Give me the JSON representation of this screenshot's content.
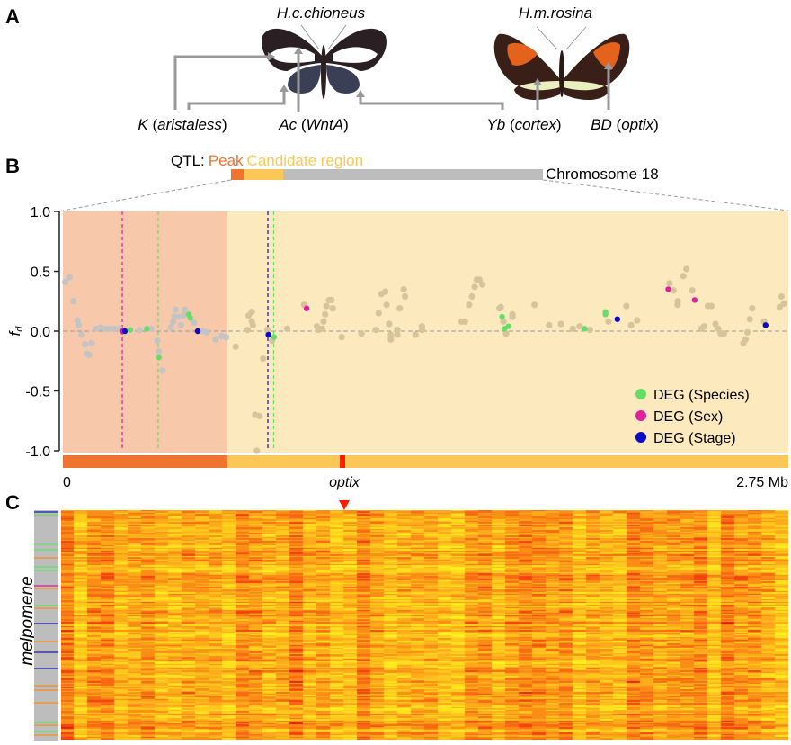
{
  "panel_labels": {
    "a": "A",
    "b": "B",
    "c": "C"
  },
  "panel_a": {
    "species_left": "H.c.chioneus",
    "species_right": "H.m.rosina",
    "loci": [
      {
        "locus": "K",
        "gene": "aristaless"
      },
      {
        "locus": "Ac",
        "gene": "WntA"
      },
      {
        "locus": "Yb",
        "gene": "cortex"
      },
      {
        "locus": "BD",
        "gene": "optix"
      }
    ]
  },
  "panel_b": {
    "qtl_prefix": "QTL:",
    "qtl_peak": "Peak",
    "qtl_candidate": "Candidate region",
    "chromosome": "Chromosome 18",
    "gene_marker": "optix",
    "x_start_label": "0",
    "x_end_label": "2.75 Mb"
  },
  "panel_c": {
    "ylabel": "melpomene"
  },
  "colors": {
    "peak": "#ee7430",
    "candidate": "#fbc756",
    "peak_bg": "#f8c8aa",
    "candidate_bg": "#fde9be",
    "chromosome": "#bdbdbd",
    "optix": "#ff1a00",
    "point_peak": "#c4c4c4",
    "point_candidate": "#d8c49a",
    "Species": "#66dd66",
    "Sex": "#e020a0",
    "Stage": "#0a0ac8"
  },
  "chart_data": {
    "type": "scatter",
    "ylabel": "fd",
    "xlim": [
      0,
      2.75
    ],
    "ylim": [
      -1.0,
      1.0
    ],
    "yticks": [
      "1.0",
      "0.5",
      "0.0",
      "-0.5",
      "-1.0"
    ],
    "peak_region": [
      0,
      0.624
    ],
    "candidate_region": [
      0.624,
      2.75
    ],
    "optix_position": [
      1.05,
      1.07
    ],
    "reference_lines": [
      {
        "x": 0.225,
        "category": "Sex"
      },
      {
        "x": 0.361,
        "category": "Species"
      },
      {
        "x": 0.777,
        "category": "Stage"
      },
      {
        "x": 0.799,
        "category": "Species"
      }
    ],
    "legend": [
      {
        "label": "DEG (Species)",
        "category": "Species"
      },
      {
        "label": "DEG (Sex)",
        "category": "Sex"
      },
      {
        "label": "DEG (Stage)",
        "category": "Stage"
      }
    ],
    "legend_position": "bottom-right",
    "points": [
      [
        0.009,
        0.41,
        ""
      ],
      [
        0.025,
        0.45,
        ""
      ],
      [
        0.04,
        0.25,
        ""
      ],
      [
        0.055,
        0.09,
        ""
      ],
      [
        0.06,
        0.05,
        ""
      ],
      [
        0.071,
        -0.03,
        ""
      ],
      [
        0.084,
        -0.11,
        ""
      ],
      [
        0.109,
        -0.1,
        ""
      ],
      [
        0.091,
        -0.19,
        ""
      ],
      [
        0.1,
        -0.2,
        ""
      ],
      [
        0.126,
        0.02,
        ""
      ],
      [
        0.143,
        0.03,
        ""
      ],
      [
        0.16,
        0.02,
        ""
      ],
      [
        0.177,
        0.02,
        ""
      ],
      [
        0.194,
        0.02,
        ""
      ],
      [
        0.215,
        0.02,
        ""
      ],
      [
        0.29,
        0.01,
        ""
      ],
      [
        0.334,
        0.02,
        ""
      ],
      [
        0.358,
        -0.08,
        ""
      ],
      [
        0.364,
        -0.17,
        ""
      ],
      [
        0.378,
        -0.33,
        ""
      ],
      [
        0.427,
        0.18,
        ""
      ],
      [
        0.462,
        0.18,
        ""
      ],
      [
        0.418,
        0.08,
        ""
      ],
      [
        0.423,
        0.12,
        ""
      ],
      [
        0.436,
        0.12,
        ""
      ],
      [
        0.457,
        0.13,
        ""
      ],
      [
        0.447,
        0.05,
        ""
      ],
      [
        0.497,
        0.07,
        ""
      ],
      [
        0.409,
        0.03,
        ""
      ],
      [
        0.528,
        0.0,
        ""
      ],
      [
        0.545,
        -0.01,
        ""
      ],
      [
        0.579,
        -0.07,
        ""
      ],
      [
        0.602,
        -0.04,
        ""
      ],
      [
        0.619,
        -0.05,
        ""
      ],
      [
        0.716,
        0.16,
        ""
      ],
      [
        0.704,
        0.13,
        ""
      ],
      [
        0.716,
        0.08,
        ""
      ],
      [
        0.72,
        0.05,
        ""
      ],
      [
        0.7,
        0.01,
        ""
      ],
      [
        0.655,
        -0.13,
        ""
      ],
      [
        0.759,
        -0.23,
        ""
      ],
      [
        0.729,
        -0.7,
        ""
      ],
      [
        0.745,
        -0.71,
        ""
      ],
      [
        0.735,
        -1.0,
        ""
      ],
      [
        0.775,
        0.01,
        ""
      ],
      [
        0.793,
        -0.08,
        ""
      ],
      [
        0.85,
        0.02,
        ""
      ],
      [
        0.914,
        0.22,
        ""
      ],
      [
        0.963,
        0.04,
        ""
      ],
      [
        0.969,
        0.01,
        ""
      ],
      [
        0.983,
        0.02,
        ""
      ],
      [
        0.988,
        0.08,
        ""
      ],
      [
        0.994,
        0.14,
        ""
      ],
      [
        0.999,
        0.21,
        ""
      ],
      [
        1.009,
        0.26,
        ""
      ],
      [
        1.018,
        0.26,
        ""
      ],
      [
        1.023,
        0.19,
        ""
      ],
      [
        1.057,
        -0.05,
        ""
      ],
      [
        1.132,
        -0.02,
        ""
      ],
      [
        1.187,
        0.01,
        ""
      ],
      [
        1.197,
        0.15,
        ""
      ],
      [
        1.207,
        0.31,
        ""
      ],
      [
        1.222,
        0.33,
        ""
      ],
      [
        1.227,
        0.22,
        ""
      ],
      [
        1.237,
        0.06,
        ""
      ],
      [
        1.243,
        -0.03,
        ""
      ],
      [
        1.243,
        -0.07,
        ""
      ],
      [
        1.268,
        0.01,
        ""
      ],
      [
        1.268,
        -0.03,
        ""
      ],
      [
        1.277,
        0.19,
        ""
      ],
      [
        1.292,
        0.35,
        ""
      ],
      [
        1.297,
        0.29,
        ""
      ],
      [
        1.337,
        -0.03,
        ""
      ],
      [
        1.361,
        0.04,
        ""
      ],
      [
        1.361,
        0.01,
        ""
      ],
      [
        1.511,
        0.08,
        ""
      ],
      [
        1.524,
        0.08,
        ""
      ],
      [
        1.54,
        0.22,
        ""
      ],
      [
        1.551,
        0.29,
        ""
      ],
      [
        1.561,
        0.37,
        ""
      ],
      [
        1.569,
        0.43,
        ""
      ],
      [
        1.579,
        0.43,
        ""
      ],
      [
        1.59,
        0.39,
        ""
      ],
      [
        1.655,
        0.19,
        ""
      ],
      [
        1.66,
        0.2,
        ""
      ],
      [
        1.67,
        0.08,
        ""
      ],
      [
        1.68,
        -0.02,
        ""
      ],
      [
        1.704,
        0.14,
        ""
      ],
      [
        1.704,
        0.12,
        ""
      ],
      [
        1.788,
        0.22,
        ""
      ],
      [
        1.843,
        0.05,
        ""
      ],
      [
        1.888,
        0.06,
        ""
      ],
      [
        1.933,
        0.02,
        ""
      ],
      [
        1.959,
        0.04,
        ""
      ],
      [
        1.998,
        0.01,
        ""
      ],
      [
        2.068,
        0.08,
        ""
      ],
      [
        2.136,
        0.21,
        ""
      ],
      [
        2.154,
        0.05,
        ""
      ],
      [
        2.177,
        0.09,
        ""
      ],
      [
        2.3,
        0.4,
        ""
      ],
      [
        2.315,
        0.34,
        ""
      ],
      [
        2.352,
        0.46,
        ""
      ],
      [
        2.364,
        0.52,
        ""
      ],
      [
        2.386,
        0.34,
        ""
      ],
      [
        2.331,
        0.25,
        ""
      ],
      [
        2.33,
        0.22,
        ""
      ],
      [
        2.445,
        0.21,
        ""
      ],
      [
        2.459,
        0.21,
        ""
      ],
      [
        2.474,
        0.06,
        ""
      ],
      [
        2.484,
        0.02,
        ""
      ],
      [
        2.494,
        -0.02,
        ""
      ],
      [
        2.506,
        -0.02,
        ""
      ],
      [
        2.42,
        0.02,
        ""
      ],
      [
        2.431,
        0.04,
        ""
      ],
      [
        2.613,
        0.19,
        ""
      ],
      [
        2.604,
        0.1,
        ""
      ],
      [
        2.595,
        -0.01,
        ""
      ],
      [
        2.588,
        -0.07,
        ""
      ],
      [
        2.58,
        -0.1,
        ""
      ],
      [
        2.658,
        0.08,
        ""
      ],
      [
        2.717,
        0.2,
        ""
      ],
      [
        2.724,
        0.29,
        ""
      ],
      [
        2.733,
        0.23,
        ""
      ],
      [
        0.225,
        0.0,
        "Sex"
      ],
      [
        0.235,
        0.0,
        "Stage"
      ],
      [
        0.255,
        0.01,
        "Species"
      ],
      [
        0.318,
        0.02,
        "Species"
      ],
      [
        0.364,
        -0.22,
        "Species"
      ],
      [
        0.477,
        0.14,
        "Species"
      ],
      [
        0.483,
        0.11,
        "Species"
      ],
      [
        0.511,
        0.0,
        "Stage"
      ],
      [
        0.779,
        -0.03,
        "Stage"
      ],
      [
        0.801,
        -0.05,
        "Species"
      ],
      [
        0.924,
        0.19,
        "Sex"
      ],
      [
        1.665,
        0.12,
        "Species"
      ],
      [
        1.674,
        0.02,
        "Species"
      ],
      [
        1.689,
        0.04,
        "Species"
      ],
      [
        1.978,
        0.02,
        "Species"
      ],
      [
        2.057,
        0.16,
        "Species"
      ],
      [
        2.057,
        0.14,
        "Species"
      ],
      [
        2.102,
        0.1,
        "Stage"
      ],
      [
        2.295,
        0.35,
        "Sex"
      ],
      [
        2.395,
        0.26,
        "Sex"
      ],
      [
        2.664,
        0.05,
        "Stage"
      ]
    ]
  }
}
